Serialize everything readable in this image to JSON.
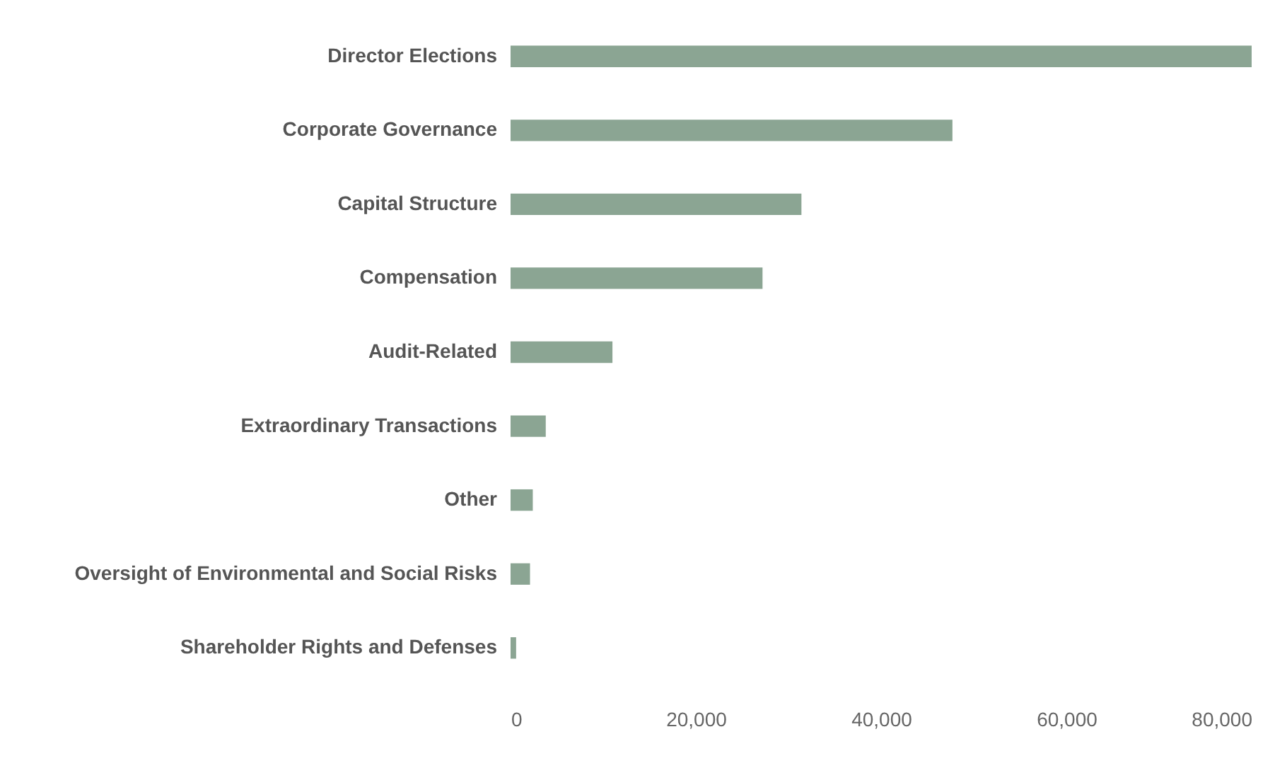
{
  "chart_data": {
    "type": "bar",
    "orientation": "horizontal",
    "categories": [
      "Director Elections",
      "Corporate Governance",
      "Capital Structure",
      "Compensation",
      "Audit-Related",
      "Extraordinary Transactions",
      "Other",
      "Oversight of Environmental and Social Risks",
      "Shareholder Rights and Defenses"
    ],
    "values": [
      80000,
      47700,
      31400,
      27200,
      11000,
      3800,
      2400,
      2100,
      600
    ],
    "color": "#8ba593",
    "xlim": [
      0,
      80000
    ],
    "xticks": [
      0,
      {
        "value": 20000,
        "label": "20,000"
      },
      {
        "value": 40000,
        "label": "40,000"
      },
      {
        "value": 60000,
        "label": "60,000"
      },
      {
        "value": 80000,
        "label": "80,000"
      }
    ],
    "grid": false
  }
}
